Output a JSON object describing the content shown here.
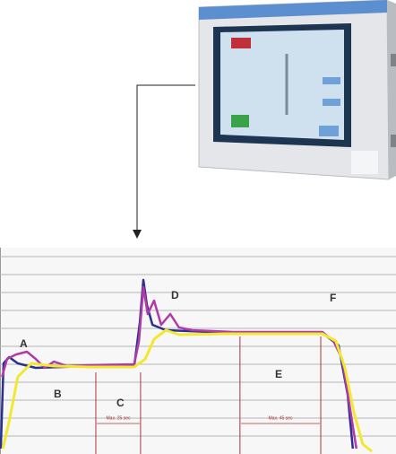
{
  "chart_data": {
    "type": "line",
    "xlim": [
      0,
      100
    ],
    "ylim": [
      0,
      11.5
    ],
    "yticks": [
      1,
      2,
      3,
      4,
      5,
      6,
      7,
      8,
      9,
      10,
      11
    ],
    "grid": true,
    "phase_lines": [
      24.2,
      35.5,
      60.6,
      81
    ],
    "annotations": [
      "A",
      "B",
      "C",
      "D",
      "E",
      "F",
      "Max. 25 sec",
      "Max. 45 sec"
    ],
    "series": [
      {
        "color": "#2b2f8f",
        "x": [
          0.2,
          0.9,
          2.3,
          4.5,
          9,
          22.6,
          33.9,
          35.3,
          36.2,
          37.1,
          38.5,
          41.9,
          58.8,
          81.4,
          85.5,
          87.8,
          89.1
        ],
        "values": [
          0.3,
          5.05,
          5.4,
          5.05,
          4.8,
          4.9,
          4.9,
          7.3,
          9.7,
          8.3,
          7.2,
          6.9,
          6.75,
          6.75,
          6.05,
          3.3,
          0.3
        ]
      },
      {
        "color": "#b03aa8",
        "x": [
          0.5,
          1.8,
          4.1,
          6.8,
          9,
          11.3,
          13.6,
          17,
          22.6,
          33.9,
          35.1,
          36.2,
          37.3,
          38.9,
          40.7,
          43,
          45.2,
          48.6,
          58.8,
          81.4,
          84.2,
          86.4,
          88.2,
          90
        ],
        "values": [
          4.3,
          5.3,
          5.55,
          5.7,
          5.3,
          4.8,
          5.15,
          4.9,
          4.95,
          5,
          6.3,
          9.3,
          7.8,
          8.55,
          7.2,
          7.8,
          7.05,
          6.9,
          6.8,
          6.8,
          6.3,
          5.3,
          2.8,
          0.3
        ]
      },
      {
        "color": "#f2e830",
        "x": [
          0.7,
          2.3,
          4.5,
          7.9,
          13.6,
          22.6,
          33.9,
          36.7,
          38.9,
          41.9,
          45.2,
          56.6,
          67.9,
          81.4,
          84.8,
          87.1,
          89.4,
          91.6,
          93.9
        ],
        "values": [
          0.3,
          1.8,
          4.3,
          5.05,
          4.9,
          4.85,
          4.85,
          5.3,
          6.4,
          6.9,
          6.65,
          6.7,
          6.7,
          6.7,
          6.3,
          4.8,
          2.3,
          0.55,
          0.15
        ]
      }
    ]
  }
}
